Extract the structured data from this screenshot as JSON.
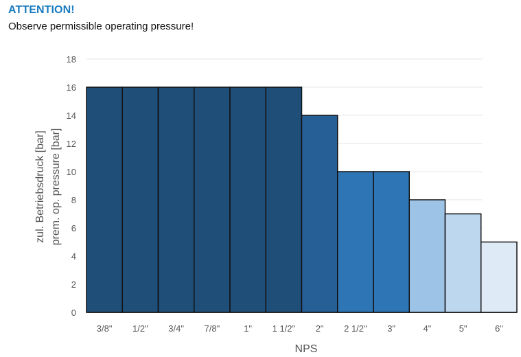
{
  "notice": {
    "heading": "ATTENTION!",
    "message": "Observe permissible operating pressure!"
  },
  "chart_data": {
    "type": "bar",
    "title": "",
    "xlabel": "NPS",
    "ylabel": [
      "zul. Betriebsdruck [bar]",
      "prem. op. pressure [bar]"
    ],
    "ylim": [
      0,
      18
    ],
    "yticks": [
      0,
      2,
      4,
      6,
      8,
      10,
      12,
      14,
      16,
      18
    ],
    "grid": true,
    "legend": "none",
    "categories": [
      "3/8\"",
      "1/2\"",
      "3/4\"",
      "7/8\"",
      "1\"",
      "1 1/2\"",
      "2\"",
      "2 1/2\"",
      "3\"",
      "4\"",
      "5\"",
      "6\""
    ],
    "values": [
      16,
      16,
      16,
      16,
      16,
      16,
      14,
      10,
      10,
      8,
      7,
      5
    ],
    "colors": [
      "#1f4e79",
      "#1f4e79",
      "#1f4e79",
      "#1f4e79",
      "#1f4e79",
      "#1f4e79",
      "#255f95",
      "#2e75b6",
      "#2e75b6",
      "#9dc3e6",
      "#bdd7ee",
      "#deebf7"
    ]
  }
}
